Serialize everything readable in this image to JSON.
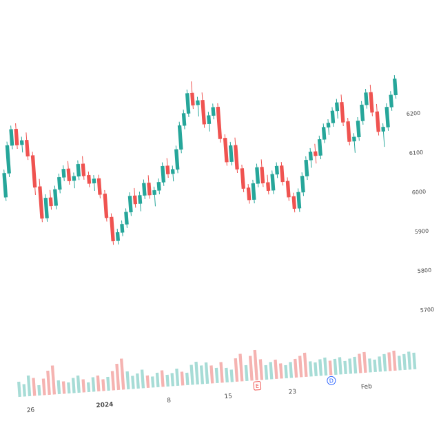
{
  "chart_data": {
    "type": "candlestick",
    "title": "",
    "xlabel": "",
    "ylabel": "",
    "x_ticks": [
      "26",
      "2024",
      "8",
      "15",
      "23",
      "Feb"
    ],
    "y_ticks": [
      "6200",
      "6100",
      "6000",
      "5900",
      "5800",
      "5700"
    ],
    "ylim": [
      5700,
      6400
    ],
    "grid": false,
    "markers": [
      {
        "label": "E",
        "near_tick": "23"
      },
      {
        "label": "D",
        "near_tick": "Feb"
      }
    ],
    "series": [
      {
        "ohlc": [
          [
            6060,
            6130,
            6050,
            6120
          ],
          [
            6120,
            6200,
            6110,
            6190
          ],
          [
            6190,
            6240,
            6180,
            6230
          ],
          [
            6230,
            6245,
            6180,
            6190
          ],
          [
            6190,
            6210,
            6170,
            6200
          ],
          [
            6200,
            6220,
            6150,
            6160
          ],
          [
            6160,
            6170,
            6060,
            6080
          ],
          [
            6080,
            6100,
            5990,
            6000
          ],
          [
            6000,
            6060,
            5990,
            6050
          ],
          [
            6050,
            6070,
            6020,
            6030
          ],
          [
            6030,
            6080,
            6020,
            6070
          ],
          [
            6070,
            6110,
            6060,
            6100
          ],
          [
            6100,
            6130,
            6090,
            6120
          ],
          [
            6120,
            6140,
            6080,
            6090
          ],
          [
            6090,
            6110,
            6070,
            6100
          ],
          [
            6100,
            6140,
            6090,
            6130
          ],
          [
            6130,
            6150,
            6090,
            6100
          ],
          [
            6100,
            6110,
            6070,
            6080
          ],
          [
            6080,
            6100,
            6060,
            6090
          ],
          [
            6090,
            6100,
            6040,
            6050
          ],
          [
            6050,
            6060,
            5980,
            5990
          ],
          [
            5990,
            6000,
            5920,
            5930
          ],
          [
            5930,
            5960,
            5920,
            5950
          ],
          [
            5950,
            5980,
            5940,
            5970
          ],
          [
            5970,
            6010,
            5960,
            6000
          ],
          [
            6000,
            6050,
            5990,
            6040
          ],
          [
            6040,
            6060,
            6010,
            6020
          ],
          [
            6020,
            6050,
            6000,
            6040
          ],
          [
            6040,
            6080,
            6030,
            6070
          ],
          [
            6070,
            6090,
            6030,
            6040
          ],
          [
            6040,
            6060,
            6010,
            6050
          ],
          [
            6050,
            6080,
            6040,
            6070
          ],
          [
            6070,
            6120,
            6060,
            6110
          ],
          [
            6110,
            6130,
            6080,
            6090
          ],
          [
            6090,
            6110,
            6070,
            6100
          ],
          [
            6100,
            6160,
            6090,
            6150
          ],
          [
            6150,
            6220,
            6140,
            6210
          ],
          [
            6210,
            6250,
            6200,
            6240
          ],
          [
            6240,
            6300,
            6230,
            6290
          ],
          [
            6290,
            6320,
            6250,
            6260
          ],
          [
            6260,
            6280,
            6230,
            6270
          ],
          [
            6270,
            6290,
            6200,
            6210
          ],
          [
            6210,
            6240,
            6190,
            6230
          ],
          [
            6230,
            6260,
            6220,
            6250
          ],
          [
            6250,
            6260,
            6160,
            6170
          ],
          [
            6170,
            6180,
            6100,
            6110
          ],
          [
            6110,
            6160,
            6100,
            6150
          ],
          [
            6150,
            6170,
            6080,
            6090
          ],
          [
            6090,
            6100,
            6030,
            6040
          ],
          [
            6040,
            6050,
            6000,
            6010
          ],
          [
            6010,
            6060,
            6000,
            6050
          ],
          [
            6050,
            6100,
            6040,
            6090
          ],
          [
            6090,
            6110,
            6040,
            6050
          ],
          [
            6050,
            6070,
            6020,
            6030
          ],
          [
            6030,
            6080,
            6020,
            6070
          ],
          [
            6070,
            6100,
            6060,
            6090
          ],
          [
            6090,
            6100,
            6040,
            6050
          ],
          [
            6050,
            6060,
            6000,
            6010
          ],
          [
            6010,
            6020,
            5970,
            5980
          ],
          [
            5980,
            6030,
            5970,
            6020
          ],
          [
            6020,
            6070,
            6010,
            6060
          ],
          [
            6060,
            6110,
            6050,
            6100
          ],
          [
            6100,
            6130,
            6080,
            6120
          ],
          [
            6120,
            6140,
            6090,
            6110
          ],
          [
            6110,
            6160,
            6100,
            6150
          ],
          [
            6150,
            6190,
            6140,
            6180
          ],
          [
            6180,
            6200,
            6160,
            6190
          ],
          [
            6190,
            6230,
            6180,
            6220
          ],
          [
            6220,
            6250,
            6200,
            6240
          ],
          [
            6240,
            6260,
            6180,
            6190
          ],
          [
            6190,
            6200,
            6130,
            6140
          ],
          [
            6140,
            6160,
            6110,
            6150
          ],
          [
            6150,
            6200,
            6140,
            6190
          ],
          [
            6190,
            6240,
            6180,
            6230
          ],
          [
            6230,
            6270,
            6220,
            6260
          ],
          [
            6260,
            6280,
            6200,
            6210
          ],
          [
            6210,
            6230,
            6150,
            6160
          ],
          [
            6160,
            6180,
            6120,
            6170
          ],
          [
            6170,
            6230,
            6160,
            6220
          ],
          [
            6220,
            6260,
            6210,
            6250
          ],
          [
            6250,
            6300,
            6240,
            6290
          ]
        ]
      }
    ],
    "volume": [
      22,
      18,
      30,
      26,
      15,
      24,
      35,
      42,
      20,
      18,
      16,
      22,
      25,
      19,
      14,
      21,
      23,
      17,
      20,
      28,
      38,
      45,
      26,
      19,
      22,
      27,
      18,
      16,
      21,
      24,
      17,
      19,
      25,
      20,
      18,
      29,
      33,
      27,
      31,
      26,
      22,
      30,
      21,
      18,
      34,
      40,
      23,
      36,
      44,
      30,
      21,
      25,
      28,
      22,
      19,
      23,
      27,
      31,
      35,
      22,
      20,
      24,
      26,
      21,
      23,
      25,
      19,
      22,
      24,
      28,
      30,
      20,
      18,
      22,
      25,
      27,
      29,
      21,
      23,
      26,
      24
    ]
  },
  "colors": {
    "bull": "#26a69a",
    "bear": "#ef5350",
    "vol_bull": "#a7dcd6",
    "vol_bear": "#f5b3b1",
    "marker_e": "#ef5350",
    "marker_d": "#2962ff"
  }
}
